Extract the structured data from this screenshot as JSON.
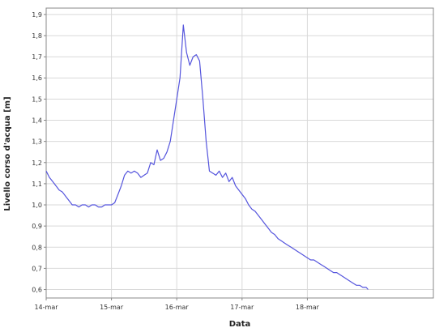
{
  "chart_data": {
    "type": "line",
    "title": "",
    "xlabel": "Data",
    "ylabel": "Livello corso d'acqua [m]",
    "xlim": [
      "14-mar",
      "19-mar+0.93"
    ],
    "ylim": [
      0.56,
      1.93
    ],
    "x_ticks": [
      "14-mar",
      "15-mar",
      "16-mar",
      "17-mar",
      "18-mar"
    ],
    "y_ticks": [
      "0,6",
      "0,7",
      "0,8",
      "0,9",
      "1,0",
      "1,1",
      "1,2",
      "1,3",
      "1,4",
      "1,5",
      "1,6",
      "1,7",
      "1,8",
      "1,9"
    ],
    "y_tick_values": [
      0.6,
      0.7,
      0.8,
      0.9,
      1.0,
      1.1,
      1.2,
      1.3,
      1.4,
      1.5,
      1.6,
      1.7,
      1.8,
      1.9
    ],
    "grid": true,
    "series": [
      {
        "color": "#5555dd",
        "points": [
          [
            "14-mar 00:00",
            1.16
          ],
          [
            "14-mar 01:12",
            1.13
          ],
          [
            "14-mar 02:24",
            1.11
          ],
          [
            "14-mar 03:36",
            1.09
          ],
          [
            "14-mar 04:48",
            1.07
          ],
          [
            "14-mar 06:00",
            1.06
          ],
          [
            "14-mar 07:12",
            1.04
          ],
          [
            "14-mar 08:24",
            1.02
          ],
          [
            "14-mar 09:36",
            1.0
          ],
          [
            "14-mar 10:48",
            1.0
          ],
          [
            "14-mar 12:00",
            0.99
          ],
          [
            "14-mar 13:12",
            1.0
          ],
          [
            "14-mar 14:24",
            1.0
          ],
          [
            "14-mar 15:36",
            0.99
          ],
          [
            "14-mar 16:48",
            1.0
          ],
          [
            "14-mar 18:00",
            1.0
          ],
          [
            "14-mar 19:12",
            0.99
          ],
          [
            "14-mar 20:24",
            0.99
          ],
          [
            "14-mar 21:36",
            1.0
          ],
          [
            "14-mar 22:48",
            1.0
          ],
          [
            "15-mar 00:00",
            1.0
          ],
          [
            "15-mar 01:12",
            1.01
          ],
          [
            "15-mar 02:24",
            1.05
          ],
          [
            "15-mar 03:36",
            1.09
          ],
          [
            "15-mar 04:48",
            1.14
          ],
          [
            "15-mar 06:00",
            1.16
          ],
          [
            "15-mar 07:12",
            1.15
          ],
          [
            "15-mar 08:24",
            1.16
          ],
          [
            "15-mar 09:36",
            1.15
          ],
          [
            "15-mar 10:48",
            1.13
          ],
          [
            "15-mar 12:00",
            1.14
          ],
          [
            "15-mar 13:12",
            1.15
          ],
          [
            "15-mar 14:24",
            1.2
          ],
          [
            "15-mar 15:36",
            1.19
          ],
          [
            "15-mar 16:48",
            1.26
          ],
          [
            "15-mar 18:00",
            1.21
          ],
          [
            "15-mar 19:12",
            1.22
          ],
          [
            "15-mar 20:24",
            1.25
          ],
          [
            "15-mar 21:36",
            1.3
          ],
          [
            "15-mar 22:48",
            1.4
          ],
          [
            "16-mar 00:00",
            1.5
          ],
          [
            "16-mar 01:12",
            1.6
          ],
          [
            "16-mar 02:24",
            1.85
          ],
          [
            "16-mar 03:36",
            1.72
          ],
          [
            "16-mar 04:48",
            1.66
          ],
          [
            "16-mar 06:00",
            1.7
          ],
          [
            "16-mar 07:12",
            1.71
          ],
          [
            "16-mar 08:24",
            1.68
          ],
          [
            "16-mar 09:36",
            1.5
          ],
          [
            "16-mar 10:48",
            1.3
          ],
          [
            "16-mar 12:00",
            1.16
          ],
          [
            "16-mar 13:12",
            1.15
          ],
          [
            "16-mar 14:24",
            1.14
          ],
          [
            "16-mar 15:36",
            1.16
          ],
          [
            "16-mar 16:48",
            1.13
          ],
          [
            "16-mar 18:00",
            1.15
          ],
          [
            "16-mar 19:12",
            1.11
          ],
          [
            "16-mar 20:24",
            1.13
          ],
          [
            "16-mar 21:36",
            1.09
          ],
          [
            "16-mar 22:48",
            1.07
          ],
          [
            "17-mar 00:00",
            1.05
          ],
          [
            "17-mar 01:12",
            1.03
          ],
          [
            "17-mar 02:24",
            1.0
          ],
          [
            "17-mar 03:36",
            0.98
          ],
          [
            "17-mar 04:48",
            0.97
          ],
          [
            "17-mar 06:00",
            0.95
          ],
          [
            "17-mar 07:12",
            0.93
          ],
          [
            "17-mar 08:24",
            0.91
          ],
          [
            "17-mar 09:36",
            0.89
          ],
          [
            "17-mar 10:48",
            0.87
          ],
          [
            "17-mar 12:00",
            0.86
          ],
          [
            "17-mar 13:12",
            0.84
          ],
          [
            "17-mar 14:24",
            0.83
          ],
          [
            "17-mar 15:36",
            0.82
          ],
          [
            "17-mar 16:48",
            0.81
          ],
          [
            "17-mar 18:00",
            0.8
          ],
          [
            "17-mar 19:12",
            0.79
          ],
          [
            "17-mar 20:24",
            0.78
          ],
          [
            "17-mar 21:36",
            0.77
          ],
          [
            "17-mar 22:48",
            0.76
          ],
          [
            "18-mar 00:00",
            0.75
          ],
          [
            "18-mar 01:12",
            0.74
          ],
          [
            "18-mar 02:24",
            0.74
          ],
          [
            "18-mar 03:36",
            0.73
          ],
          [
            "18-mar 04:48",
            0.72
          ],
          [
            "18-mar 06:00",
            0.71
          ],
          [
            "18-mar 07:12",
            0.7
          ],
          [
            "18-mar 08:24",
            0.69
          ],
          [
            "18-mar 09:36",
            0.68
          ],
          [
            "18-mar 10:48",
            0.68
          ],
          [
            "18-mar 12:00",
            0.67
          ],
          [
            "18-mar 13:12",
            0.66
          ],
          [
            "18-mar 14:24",
            0.65
          ],
          [
            "18-mar 15:36",
            0.64
          ],
          [
            "18-mar 16:48",
            0.63
          ],
          [
            "18-mar 18:00",
            0.62
          ],
          [
            "18-mar 19:12",
            0.62
          ],
          [
            "18-mar 20:24",
            0.61
          ],
          [
            "18-mar 21:36",
            0.61
          ],
          [
            "18-mar 22:19",
            0.6
          ]
        ]
      }
    ]
  }
}
